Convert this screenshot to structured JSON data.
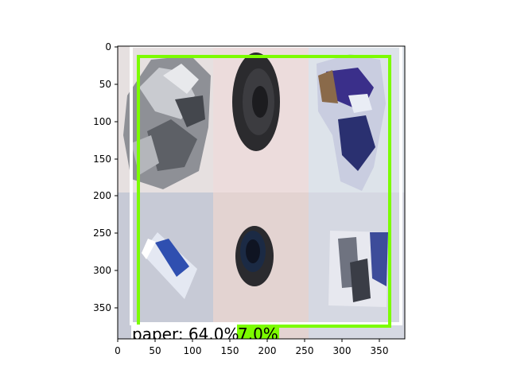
{
  "figure": {
    "x_ticks": [
      "0",
      "50",
      "100",
      "150",
      "200",
      "250",
      "300",
      "350"
    ],
    "y_ticks": [
      "0",
      "50",
      "100",
      "150",
      "200",
      "250",
      "300",
      "350"
    ],
    "image_extent": {
      "x": [
        0,
        384
      ],
      "y": [
        0,
        384
      ]
    }
  },
  "grid_tiles": [
    {
      "name": "tile-aluminum-foil",
      "bg": "#eae6e6"
    },
    {
      "name": "tile-black-lid",
      "bg": "#ecdcdc"
    },
    {
      "name": "tile-plastic-wrapper",
      "bg": "#dde3ea"
    },
    {
      "name": "tile-toothpaste-tube",
      "bg": "#c9cbd6"
    },
    {
      "name": "tile-bottle-cap",
      "bg": "#e3d3d1"
    },
    {
      "name": "tile-paper-packet",
      "bg": "#d5d8e2"
    }
  ],
  "detections": [
    {
      "label": "paper: 64.0%",
      "color": "#ffffff",
      "label_bg": "#ffffff"
    },
    {
      "label": "7.0%",
      "color": "#7cfc00",
      "label_bg": "#7cfc00"
    }
  ]
}
